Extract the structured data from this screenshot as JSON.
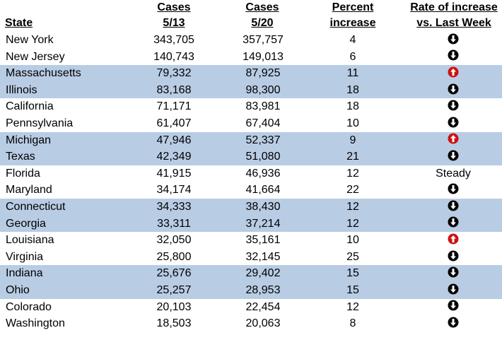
{
  "header": {
    "state": "State",
    "cases1_line1": "Cases",
    "cases1_line2": "5/13",
    "cases2_line1": "Cases",
    "cases2_line2": "5/20",
    "pct_line1": "Percent",
    "pct_line2": "increase",
    "rate_line1": "Rate of increase",
    "rate_line2": "vs. Last Week"
  },
  "rows": [
    {
      "state": "New York",
      "c1": "343,705",
      "c2": "357,757",
      "pct": "4",
      "rate": "down",
      "rate_text": ""
    },
    {
      "state": "New Jersey",
      "c1": "140,743",
      "c2": "149,013",
      "pct": "6",
      "rate": "down",
      "rate_text": ""
    },
    {
      "state": "Massachusetts",
      "c1": "79,332",
      "c2": "87,925",
      "pct": "11",
      "rate": "up",
      "rate_text": ""
    },
    {
      "state": "Illinois",
      "c1": "83,168",
      "c2": "98,300",
      "pct": "18",
      "rate": "down",
      "rate_text": ""
    },
    {
      "state": "California",
      "c1": "71,171",
      "c2": "83,981",
      "pct": "18",
      "rate": "down",
      "rate_text": ""
    },
    {
      "state": "Pennsylvania",
      "c1": "61,407",
      "c2": "67,404",
      "pct": "10",
      "rate": "down",
      "rate_text": ""
    },
    {
      "state": "Michigan",
      "c1": "47,946",
      "c2": "52,337",
      "pct": "9",
      "rate": "up",
      "rate_text": ""
    },
    {
      "state": "Texas",
      "c1": "42,349",
      "c2": "51,080",
      "pct": "21",
      "rate": "down",
      "rate_text": ""
    },
    {
      "state": "Florida",
      "c1": "41,915",
      "c2": "46,936",
      "pct": "12",
      "rate": "steady",
      "rate_text": "Steady"
    },
    {
      "state": "Maryland",
      "c1": "34,174",
      "c2": "41,664",
      "pct": "22",
      "rate": "down",
      "rate_text": ""
    },
    {
      "state": "Connecticut",
      "c1": "34,333",
      "c2": "38,430",
      "pct": "12",
      "rate": "down",
      "rate_text": ""
    },
    {
      "state": "Georgia",
      "c1": "33,311",
      "c2": "37,214",
      "pct": "12",
      "rate": "down",
      "rate_text": ""
    },
    {
      "state": "Louisiana",
      "c1": "32,050",
      "c2": "35,161",
      "pct": "10",
      "rate": "up",
      "rate_text": ""
    },
    {
      "state": "Virginia",
      "c1": "25,800",
      "c2": "32,145",
      "pct": "25",
      "rate": "down",
      "rate_text": ""
    },
    {
      "state": "Indiana",
      "c1": "25,676",
      "c2": "29,402",
      "pct": "15",
      "rate": "down",
      "rate_text": ""
    },
    {
      "state": "Ohio",
      "c1": "25,257",
      "c2": "28,953",
      "pct": "15",
      "rate": "down",
      "rate_text": ""
    },
    {
      "state": "Colorado",
      "c1": "20,103",
      "c2": "22,454",
      "pct": "12",
      "rate": "down",
      "rate_text": ""
    },
    {
      "state": "Washington",
      "c1": "18,503",
      "c2": "20,063",
      "pct": "8",
      "rate": "down",
      "rate_text": ""
    }
  ],
  "shaded_rows": [
    2,
    3,
    6,
    7,
    10,
    11,
    14,
    15
  ],
  "colors": {
    "shade": "#b8cce4",
    "down_icon": "#000000",
    "up_icon": "#cc1111"
  },
  "icons": {
    "down": "arrow-down-circle-icon",
    "up": "arrow-up-circle-icon"
  }
}
